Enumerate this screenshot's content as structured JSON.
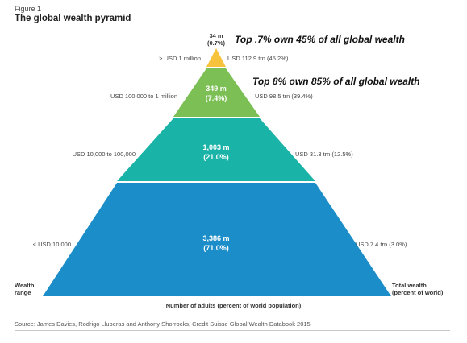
{
  "figure_label": "Figure 1",
  "figure_title": "The global wealth pyramid",
  "callouts": {
    "top_07": "Top .7% own 45% of all global wealth",
    "top_8": "Top 8% own 85% of all global wealth"
  },
  "axis": {
    "left_label": [
      "Wealth",
      "range"
    ],
    "right_label": [
      "Total wealth",
      "(percent of world)"
    ],
    "bottom_label": "Number of adults (percent of world population)"
  },
  "source": "Source: James Davies, Rodrigo Lluberas and Anthony Shorrocks, Credit Suisse Global Wealth Databook 2015",
  "colors": {
    "tier1": "#f7c23c",
    "tier2": "#7cbf55",
    "tier3": "#1ab3a7",
    "tier4": "#1b8ec9"
  },
  "chart_data": {
    "type": "pyramid",
    "title": "The global wealth pyramid",
    "tiers": [
      {
        "wealth_range": "> USD 1 million",
        "adults": "34 m",
        "adults_pct": "(0.7%)",
        "adults_m": 34,
        "adults_share": 0.7,
        "total_wealth": "USD 112.9 trn (45.2%)",
        "wealth_trn": 112.9,
        "wealth_share": 45.2,
        "color": "#f7c23c"
      },
      {
        "wealth_range": "USD 100,000 to 1 million",
        "adults": "349 m",
        "adults_pct": "(7.4%)",
        "adults_m": 349,
        "adults_share": 7.4,
        "total_wealth": "USD 98.5 trn (39.4%)",
        "wealth_trn": 98.5,
        "wealth_share": 39.4,
        "color": "#7cbf55"
      },
      {
        "wealth_range": "USD 10,000 to 100,000",
        "adults": "1,003 m",
        "adults_pct": "(21.0%)",
        "adults_m": 1003,
        "adults_share": 21.0,
        "total_wealth": "USD 31.3 trn (12.5%)",
        "wealth_trn": 31.3,
        "wealth_share": 12.5,
        "color": "#1ab3a7"
      },
      {
        "wealth_range": "< USD 10,000",
        "adults": "3,386 m",
        "adults_pct": "(71.0%)",
        "adults_m": 3386,
        "adults_share": 71.0,
        "total_wealth": "USD 7.4 trn (3.0%)",
        "wealth_trn": 7.4,
        "wealth_share": 3.0,
        "color": "#1b8ec9"
      }
    ]
  }
}
